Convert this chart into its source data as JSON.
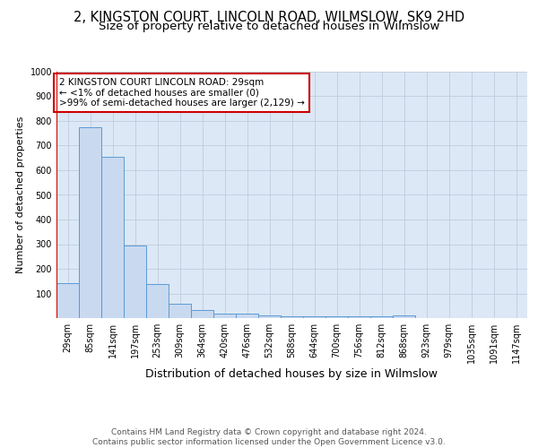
{
  "title": "2, KINGSTON COURT, LINCOLN ROAD, WILMSLOW, SK9 2HD",
  "subtitle": "Size of property relative to detached houses in Wilmslow",
  "xlabel": "Distribution of detached houses by size in Wilmslow",
  "ylabel": "Number of detached properties",
  "categories": [
    "29sqm",
    "85sqm",
    "141sqm",
    "197sqm",
    "253sqm",
    "309sqm",
    "364sqm",
    "420sqm",
    "476sqm",
    "532sqm",
    "588sqm",
    "644sqm",
    "700sqm",
    "756sqm",
    "812sqm",
    "868sqm",
    "923sqm",
    "979sqm",
    "1035sqm",
    "1091sqm",
    "1147sqm"
  ],
  "values": [
    143,
    775,
    655,
    295,
    138,
    57,
    32,
    20,
    20,
    12,
    8,
    8,
    8,
    8,
    8,
    10,
    0,
    0,
    0,
    0,
    0
  ],
  "bar_color": "#c9d9f0",
  "bar_edge_color": "#5b9bd5",
  "grid_color": "#c0ccdd",
  "background_color": "#dce8f5",
  "red_line_color": "#cc0000",
  "ylim": [
    0,
    1000
  ],
  "yticks": [
    0,
    100,
    200,
    300,
    400,
    500,
    600,
    700,
    800,
    900,
    1000
  ],
  "annotation_text": "2 KINGSTON COURT LINCOLN ROAD: 29sqm\n← <1% of detached houses are smaller (0)\n>99% of semi-detached houses are larger (2,129) →",
  "annotation_box_color": "#ffffff",
  "annotation_border_color": "#cc0000",
  "footer_text": "Contains HM Land Registry data © Crown copyright and database right 2024.\nContains public sector information licensed under the Open Government Licence v3.0.",
  "title_fontsize": 10.5,
  "subtitle_fontsize": 9.5,
  "xlabel_fontsize": 9,
  "ylabel_fontsize": 8,
  "tick_fontsize": 7,
  "annotation_fontsize": 7.5,
  "footer_fontsize": 6.5
}
